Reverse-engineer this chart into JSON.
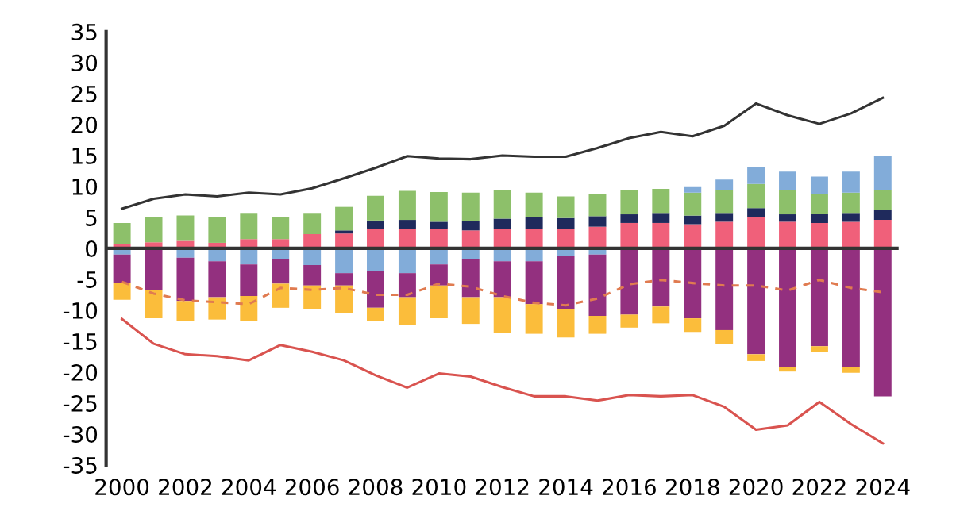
{
  "chart_data": {
    "type": "bar",
    "stacked": true,
    "categories": [
      "2000",
      null,
      "2002",
      null,
      "2004",
      null,
      "2006",
      null,
      "2008",
      null,
      "2010",
      null,
      "2012",
      null,
      "2014",
      null,
      "2016",
      null,
      "2018",
      null,
      "2020",
      null,
      "2022",
      null,
      "2024"
    ],
    "series": [
      {
        "color": "#f0607a",
        "values": [
          0.7,
          1.0,
          1.2,
          0.9,
          1.5,
          1.5,
          2.3,
          2.4,
          3.2,
          3.2,
          3.2,
          2.9,
          3.1,
          3.2,
          3.1,
          3.5,
          4.1,
          4.1,
          3.9,
          4.3,
          5.1,
          4.3,
          4.1,
          4.3,
          4.6
        ]
      },
      {
        "color": "#1f2a5c",
        "values": [
          0,
          0,
          0,
          0,
          0,
          0,
          0,
          0.5,
          1.3,
          1.4,
          1.1,
          1.5,
          1.7,
          1.8,
          1.8,
          1.7,
          1.4,
          1.5,
          1.4,
          1.3,
          1.4,
          1.2,
          1.4,
          1.3,
          1.6
        ]
      },
      {
        "color": "#8dc06a",
        "values": [
          3.4,
          4.0,
          4.1,
          4.2,
          4.1,
          3.5,
          3.3,
          3.8,
          4.0,
          4.7,
          4.8,
          4.6,
          4.6,
          4.0,
          3.5,
          3.6,
          3.9,
          4.0,
          3.7,
          3.8,
          3.9,
          3.9,
          3.2,
          3.4,
          3.2
        ]
      },
      {
        "color": "#82acd9",
        "values": [
          0,
          0,
          0,
          0,
          0,
          0,
          0,
          0,
          0,
          0,
          0,
          0,
          0,
          0,
          0,
          0,
          0,
          0,
          0.9,
          1.7,
          2.8,
          3.0,
          2.9,
          3.4,
          5.5
        ]
      },
      {
        "color": "#82acd9",
        "values": [
          -1.0,
          0,
          -1.5,
          -2.1,
          -2.6,
          -1.7,
          -2.7,
          -4.0,
          -3.6,
          -4.0,
          -2.6,
          -1.7,
          -2.1,
          -2.1,
          -1.3,
          -1.0,
          0,
          0,
          0,
          0,
          0,
          0,
          0,
          0,
          0
        ]
      },
      {
        "color": "#93307f",
        "values": [
          -4.6,
          -6.7,
          -7.0,
          -5.8,
          -5.1,
          -4.0,
          -3.3,
          -2.0,
          -6.0,
          -3.9,
          -3.4,
          -6.2,
          -5.8,
          -6.9,
          -8.5,
          -9.9,
          -10.7,
          -9.4,
          -11.3,
          -13.2,
          -17.1,
          -19.2,
          -15.8,
          -19.2,
          -23.9
        ]
      },
      {
        "color": "#fbbd3b",
        "values": [
          -2.7,
          -4.6,
          -3.2,
          -3.6,
          -4.0,
          -3.9,
          -3.8,
          -4.4,
          -2.1,
          -4.5,
          -5.3,
          -4.3,
          -5.8,
          -4.8,
          -4.6,
          -2.9,
          -2.1,
          -2.7,
          -2.2,
          -2.2,
          -1.1,
          -0.7,
          -0.9,
          -0.9,
          0
        ]
      },
      {
        "type": "line",
        "color": "#333333",
        "values": [
          6.4,
          8.0,
          8.7,
          8.4,
          9.0,
          8.7,
          9.7,
          11.3,
          13.0,
          14.9,
          14.5,
          14.4,
          15.0,
          14.8,
          14.8,
          16.2,
          17.8,
          18.8,
          18.1,
          19.8,
          23.4,
          21.5,
          20.1,
          21.8,
          24.3
        ]
      },
      {
        "type": "line",
        "color": "#d9534f",
        "values": [
          -11.4,
          -15.4,
          -17.1,
          -17.4,
          -18.1,
          -15.6,
          -16.7,
          -18.1,
          -20.5,
          -22.5,
          -20.2,
          -20.7,
          -22.4,
          -23.9,
          -23.9,
          -24.6,
          -23.7,
          -23.9,
          -23.7,
          -25.6,
          -29.3,
          -28.6,
          -24.8,
          -28.4,
          -31.5
        ]
      },
      {
        "type": "line",
        "line_style": "dashed",
        "color": "#e07b50",
        "values": [
          -5.4,
          -7.3,
          -8.4,
          -8.7,
          -9.0,
          -6.4,
          -6.7,
          -6.4,
          -7.5,
          -7.5,
          -5.7,
          -6.2,
          -7.7,
          -8.8,
          -9.2,
          -8.1,
          -5.8,
          -5.1,
          -5.6,
          -6.0,
          -6.0,
          -6.8,
          -5.1,
          -6.4,
          -7.1
        ]
      }
    ],
    "ylim": [
      -35,
      35
    ],
    "yticks": [
      -35,
      -30,
      -25,
      -20,
      -15,
      -10,
      -5,
      0,
      5,
      10,
      15,
      20,
      25,
      30,
      35
    ],
    "ref_lines": [
      {
        "axis": "y",
        "value": 0,
        "color": "#333333"
      }
    ],
    "grid": false,
    "legend": false
  }
}
